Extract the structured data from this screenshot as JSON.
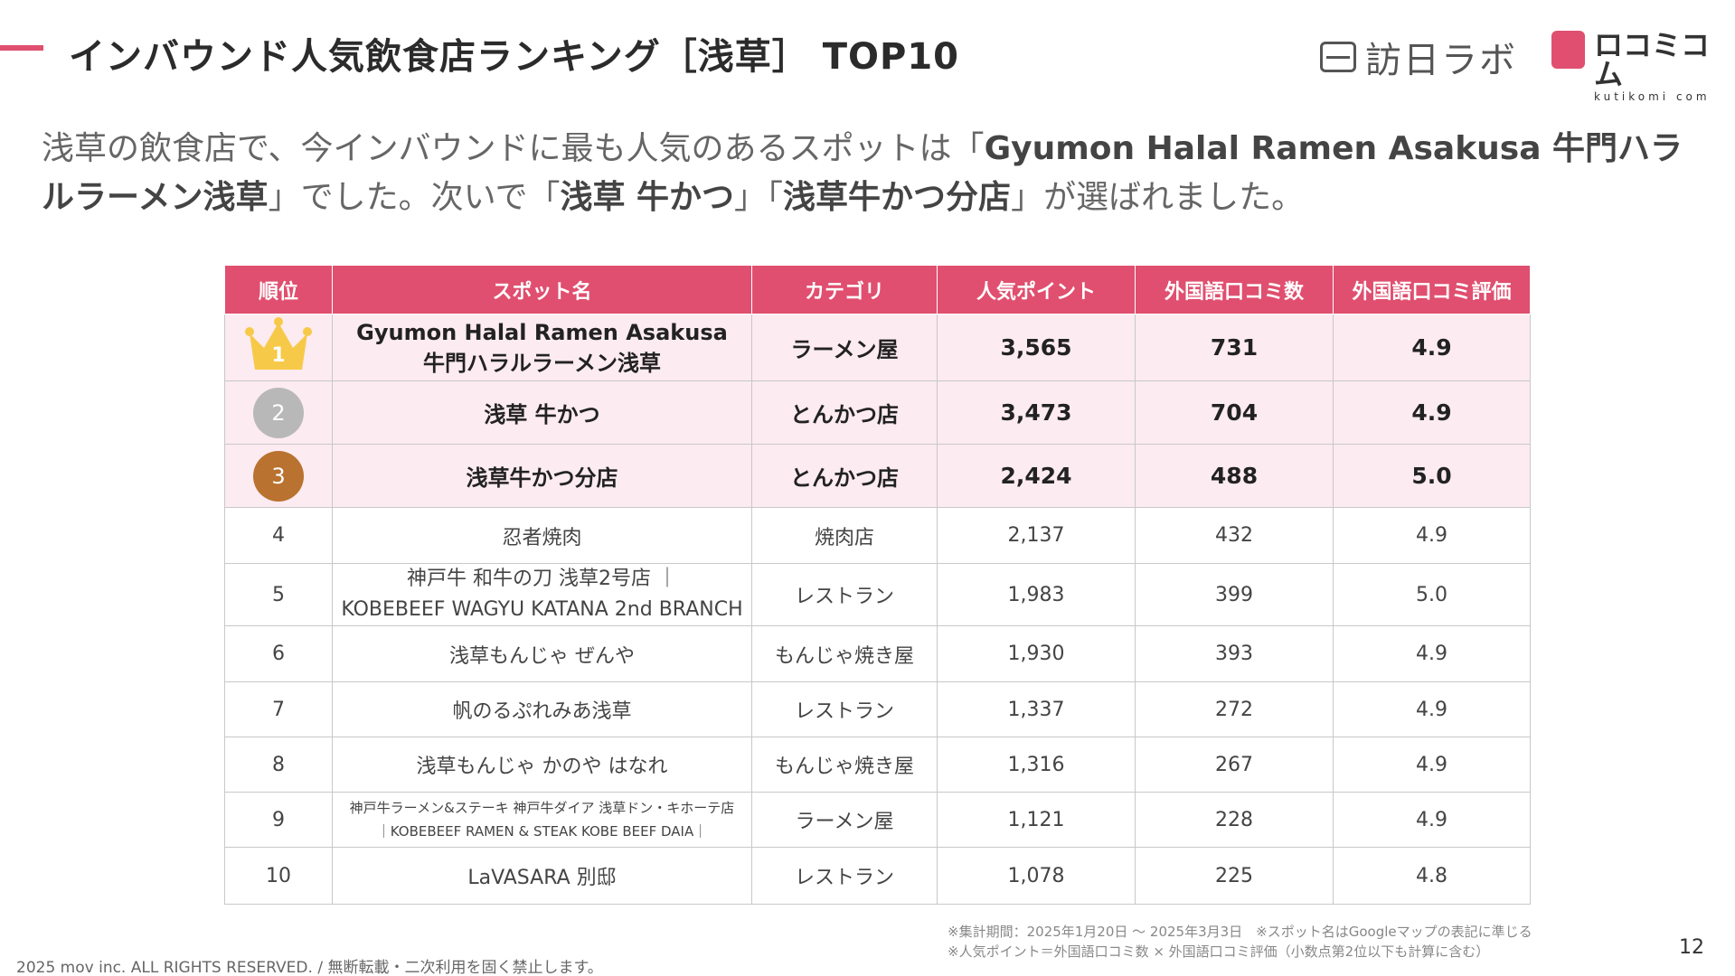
{
  "header": {
    "title": "インバウンド人気飲食店ランキング［浅草］ TOP10",
    "logo1_text": "訪日ラボ",
    "logo2_text": "ロコミコム",
    "logo2_sub": "kutikomi com"
  },
  "intro": {
    "p1": "浅草の飲食店で、今インバウンドに最も人気のあるスポットは「",
    "b1": "Gyumon Halal Ramen Asakusa 牛門ハラルラーメン浅草",
    "p2": "」でした。次いで「",
    "b2": "浅草 牛かつ",
    "p3": "」「",
    "b3": "浅草牛かつ分店",
    "p4": "」が選ばれました。"
  },
  "table": {
    "headers": [
      "順位",
      "スポット名",
      "カテゴリ",
      "人気ポイント",
      "外国語口コミ数",
      "外国語口コミ評価"
    ],
    "rows": [
      {
        "rank": "1",
        "name1": "Gyumon Halal Ramen Asakusa",
        "name2": "牛門ハラルラーメン浅草",
        "category": "ラーメン屋",
        "points": "3,565",
        "reviews": "731",
        "rating": "4.9"
      },
      {
        "rank": "2",
        "name1": "浅草 牛かつ",
        "name2": "",
        "category": "とんかつ店",
        "points": "3,473",
        "reviews": "704",
        "rating": "4.9"
      },
      {
        "rank": "3",
        "name1": "浅草牛かつ分店",
        "name2": "",
        "category": "とんかつ店",
        "points": "2,424",
        "reviews": "488",
        "rating": "5.0"
      },
      {
        "rank": "4",
        "name1": "忍者焼肉",
        "name2": "",
        "category": "焼肉店",
        "points": "2,137",
        "reviews": "432",
        "rating": "4.9"
      },
      {
        "rank": "5",
        "name1": "神戸牛 和牛の刀 浅草2号店 ｜",
        "name2": "KOBEBEEF WAGYU KATANA 2nd BRANCH",
        "category": "レストラン",
        "points": "1,983",
        "reviews": "399",
        "rating": "5.0"
      },
      {
        "rank": "6",
        "name1": "浅草もんじゃ ぜんや",
        "name2": "",
        "category": "もんじゃ焼き屋",
        "points": "1,930",
        "reviews": "393",
        "rating": "4.9"
      },
      {
        "rank": "7",
        "name1": "帆のるぷれみあ浅草",
        "name2": "",
        "category": "レストラン",
        "points": "1,337",
        "reviews": "272",
        "rating": "4.9"
      },
      {
        "rank": "8",
        "name1": "浅草もんじゃ かのや はなれ",
        "name2": "",
        "category": "もんじゃ焼き屋",
        "points": "1,316",
        "reviews": "267",
        "rating": "4.9"
      },
      {
        "rank": "9",
        "name1": "神戸牛ラーメン&ステーキ 神戸牛ダイア 浅草ドン・キホーテ店",
        "name2": "｜KOBEBEEF RAMEN & STEAK KOBE BEEF DAIA｜",
        "category": "ラーメン屋",
        "points": "1,121",
        "reviews": "228",
        "rating": "4.9"
      },
      {
        "rank": "10",
        "name1": "LaVASARA 別邸",
        "name2": "",
        "category": "レストラン",
        "points": "1,078",
        "reviews": "225",
        "rating": "4.8"
      }
    ]
  },
  "footer": {
    "note1": "※集計期間：2025年1月20日 〜 2025年3月3日　※スポット名はGoogleマップの表記に準じる",
    "note2": "※人気ポイント＝外国語口コミ数 × 外国語口コミ評価（小数点第2位以下も計算に含む）",
    "copyright": "2025 mov inc. ALL RIGHTS RESERVED. / 無断転載・二次利用を固く禁止します。",
    "page_number": "12"
  },
  "colors": {
    "accent": "#e04f6f",
    "gold": "#f7c948",
    "silver": "#b8b8b8",
    "bronze": "#b9722f",
    "highlight_row": "#fcebf0"
  }
}
